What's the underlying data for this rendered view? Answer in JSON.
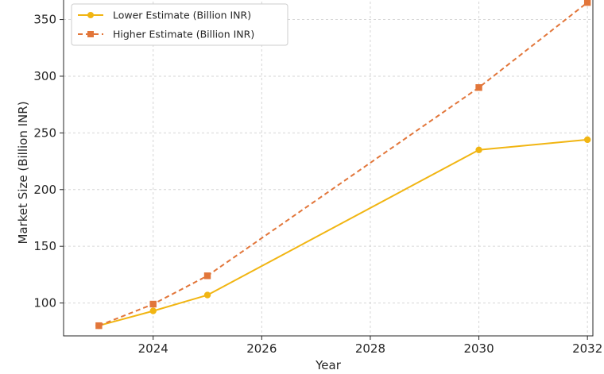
{
  "chart_data": {
    "type": "line",
    "xlabel": "Year",
    "ylabel": "Market Size (Billion INR)",
    "xlim": [
      2022.35,
      2032.1
    ],
    "ylim": [
      71,
      370
    ],
    "xticks": [
      2024,
      2026,
      2028,
      2030,
      2032
    ],
    "yticks": [
      100,
      150,
      200,
      250,
      300,
      350
    ],
    "grid": true,
    "legend_position": "top-left",
    "series": [
      {
        "name": "Lower Estimate (Billion INR)",
        "color": "#f1b512",
        "line_style": "solid",
        "marker": "circle",
        "points": [
          {
            "x": 2023,
            "y": 80
          },
          {
            "x": 2024,
            "y": 93
          },
          {
            "x": 2025,
            "y": 107
          },
          {
            "x": 2030,
            "y": 235
          },
          {
            "x": 2032,
            "y": 244
          }
        ]
      },
      {
        "name": "Higher Estimate (Billion INR)",
        "color": "#e2763a",
        "line_style": "dashed",
        "marker": "square",
        "points": [
          {
            "x": 2023,
            "y": 80
          },
          {
            "x": 2024,
            "y": 99
          },
          {
            "x": 2025,
            "y": 124
          },
          {
            "x": 2030,
            "y": 290
          },
          {
            "x": 2032,
            "y": 365
          }
        ]
      }
    ]
  }
}
